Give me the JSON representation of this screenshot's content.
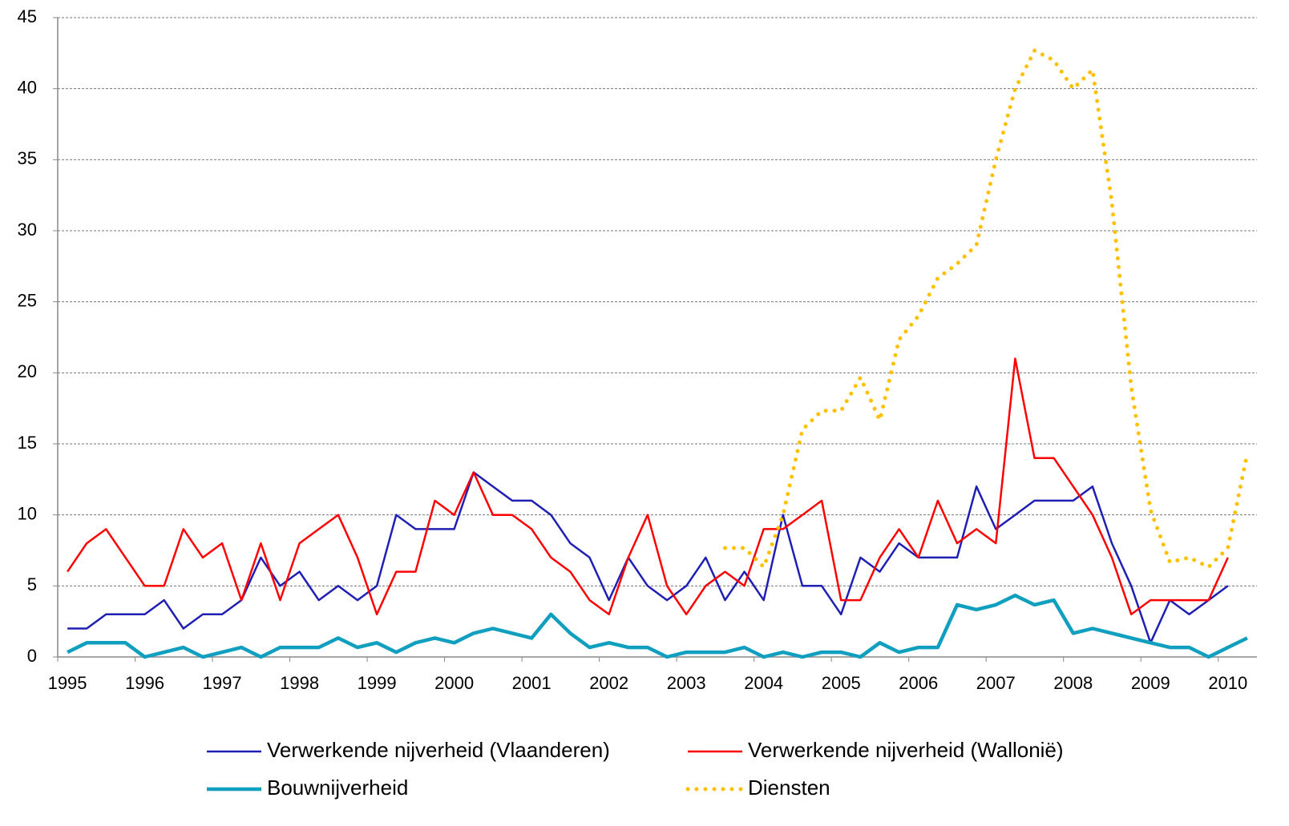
{
  "chart_data": {
    "type": "line",
    "categories": [
      "1995",
      null,
      null,
      null,
      "1996",
      null,
      null,
      null,
      "1997",
      null,
      null,
      null,
      "1998",
      null,
      null,
      null,
      "1999",
      null,
      null,
      null,
      "2000",
      null,
      null,
      null,
      "2001",
      null,
      null,
      null,
      "2002",
      null,
      null,
      null,
      "2003",
      null,
      null,
      null,
      "2004",
      null,
      null,
      null,
      "2005",
      null,
      null,
      null,
      "2006",
      null,
      null,
      null,
      "2007",
      null,
      null,
      null,
      "2008",
      null,
      null,
      null,
      "2009",
      null,
      null,
      null,
      "2010",
      null
    ],
    "series": [
      {
        "name": "Verwerkende nijverheid (Vlaanderen)",
        "color": "#1f1fb4",
        "width": 2.5,
        "line_style": "solid",
        "values": [
          2,
          2,
          3,
          3,
          3,
          4,
          2,
          3,
          3,
          4,
          7,
          5,
          6,
          4,
          5,
          4,
          5,
          10,
          9,
          9,
          9,
          13,
          12,
          11,
          11,
          10,
          8,
          7,
          4,
          7,
          5,
          4,
          5,
          7,
          4,
          6,
          4,
          10,
          5,
          5,
          3,
          7,
          6,
          8,
          7,
          7,
          7,
          12,
          9,
          10,
          11,
          11,
          11,
          12,
          8,
          5,
          1,
          4,
          3,
          4,
          5,
          null
        ]
      },
      {
        "name": "Verwerkende nijverheid (Wallonië)",
        "color": "#ff0000",
        "width": 2.5,
        "line_style": "solid",
        "values": [
          6,
          8,
          9,
          7,
          5,
          5,
          9,
          7,
          8,
          4,
          8,
          4,
          8,
          9,
          10,
          7,
          3,
          6,
          6,
          11,
          10,
          13,
          10,
          10,
          9,
          7,
          6,
          4,
          3,
          7,
          10,
          5,
          3,
          5,
          6,
          5,
          9,
          9,
          10,
          11,
          4,
          4,
          7,
          9,
          7,
          11,
          8,
          9,
          8,
          21,
          14,
          14,
          12,
          10,
          7,
          3,
          4,
          4,
          4,
          4,
          7,
          null
        ]
      },
      {
        "name": "Bouwnijverheid",
        "color": "#119fbf",
        "width": 4.5,
        "line_style": "solid",
        "values": [
          0.33,
          1,
          1,
          1,
          0,
          0.33,
          0.67,
          0,
          0.33,
          0.67,
          0,
          0.67,
          0.67,
          0.67,
          1.33,
          0.67,
          1,
          0.33,
          1,
          1.33,
          1,
          1.67,
          2,
          1.67,
          1.33,
          3,
          1.67,
          0.67,
          1,
          0.67,
          0.67,
          0,
          0.33,
          0.33,
          0.33,
          0.67,
          0,
          0.33,
          0,
          0.33,
          0.33,
          0,
          1,
          0.33,
          0.67,
          0.67,
          3.67,
          3.33,
          3.67,
          4.33,
          3.67,
          4,
          1.67,
          2,
          1.67,
          1.33,
          1,
          0.67,
          0.67,
          0,
          0.67,
          1.33
        ]
      },
      {
        "name": "Diensten",
        "color": "#ffc000",
        "width": 5,
        "line_style": "dotted",
        "values": [
          null,
          null,
          null,
          null,
          null,
          null,
          null,
          null,
          null,
          null,
          null,
          null,
          null,
          null,
          null,
          null,
          null,
          null,
          null,
          null,
          null,
          null,
          null,
          null,
          null,
          null,
          null,
          null,
          null,
          null,
          null,
          null,
          null,
          null,
          7.67,
          7.67,
          6.33,
          10,
          16,
          17.33,
          17.33,
          19.67,
          16.67,
          22.33,
          24,
          26.67,
          27.67,
          29,
          35,
          40,
          42.67,
          42,
          40,
          41.33,
          32,
          19,
          10.33,
          6.67,
          7,
          6.33,
          7.67,
          14.33
        ]
      }
    ],
    "ylim": [
      0,
      45
    ],
    "yticks": [
      0,
      5,
      10,
      15,
      20,
      25,
      30,
      35,
      40,
      45
    ],
    "grid": true,
    "legend": "bottom"
  }
}
